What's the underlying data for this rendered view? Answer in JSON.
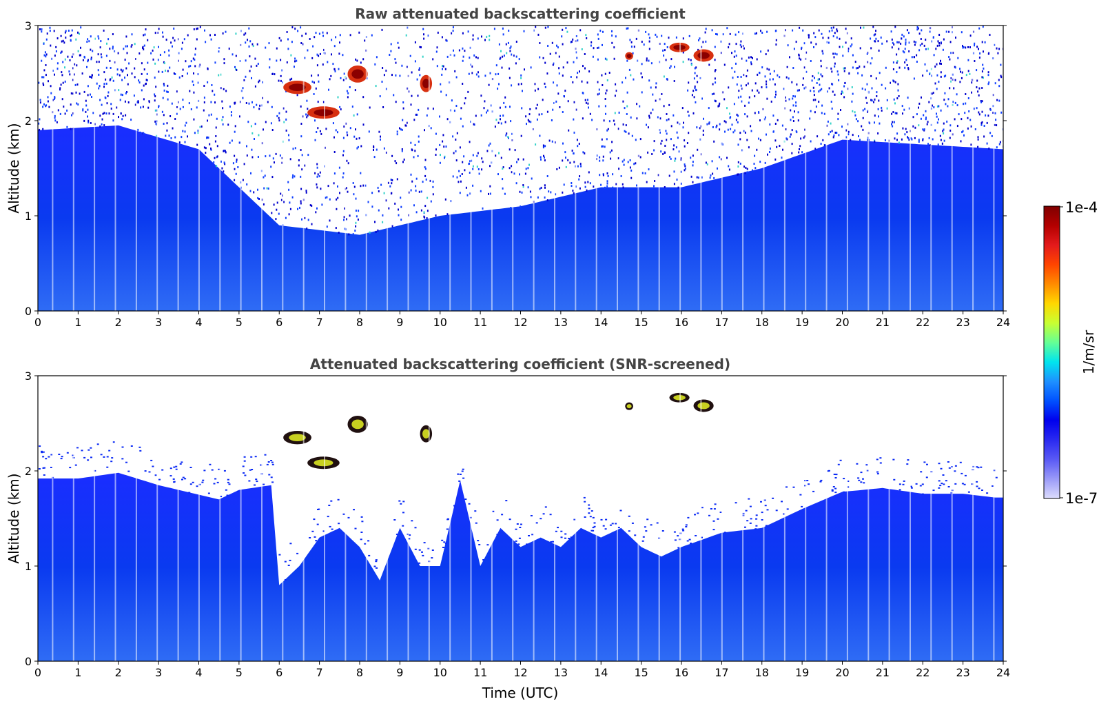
{
  "chart_data": [
    {
      "type": "heatmap",
      "title": "Raw attenuated backscattering coefficient",
      "xlabel": "",
      "ylabel": "Altitude (km)",
      "xlim": [
        0,
        24
      ],
      "ylim": [
        0,
        3
      ],
      "xticks": [
        "0",
        "1",
        "2",
        "3",
        "4",
        "5",
        "6",
        "7",
        "8",
        "9",
        "10",
        "11",
        "12",
        "13",
        "14",
        "15",
        "16",
        "17",
        "18",
        "19",
        "20",
        "21",
        "22",
        "23",
        "24"
      ],
      "yticks": [
        "0",
        "1",
        "2",
        "3"
      ],
      "boundary_layer_top_km": [
        [
          0,
          1.9
        ],
        [
          2,
          1.95
        ],
        [
          4,
          1.7
        ],
        [
          6,
          0.9
        ],
        [
          8,
          0.8
        ],
        [
          10,
          1.0
        ],
        [
          12,
          1.1
        ],
        [
          14,
          1.3
        ],
        [
          16,
          1.3
        ],
        [
          18,
          1.5
        ],
        [
          20,
          1.8
        ],
        [
          22,
          1.75
        ],
        [
          24,
          1.7
        ]
      ],
      "clouds": [
        {
          "t0": 6.1,
          "t1": 6.8,
          "z0": 2.28,
          "z1": 2.42
        },
        {
          "t0": 6.7,
          "t1": 7.5,
          "z0": 2.02,
          "z1": 2.15
        },
        {
          "t0": 7.7,
          "t1": 8.2,
          "z0": 2.4,
          "z1": 2.58
        },
        {
          "t0": 9.5,
          "t1": 9.8,
          "z0": 2.3,
          "z1": 2.48
        },
        {
          "t0": 14.6,
          "t1": 14.8,
          "z0": 2.64,
          "z1": 2.72
        },
        {
          "t0": 15.7,
          "t1": 16.2,
          "z0": 2.72,
          "z1": 2.82
        },
        {
          "t0": 16.3,
          "t1": 16.8,
          "z0": 2.62,
          "z1": 2.75
        }
      ]
    },
    {
      "type": "heatmap",
      "title": "Attenuated backscattering coefficient (SNR-screened)",
      "xlabel": "Time (UTC)",
      "ylabel": "Altitude (km)",
      "xlim": [
        0,
        24
      ],
      "ylim": [
        0,
        3
      ],
      "xticks": [
        "0",
        "1",
        "2",
        "3",
        "4",
        "5",
        "6",
        "7",
        "8",
        "9",
        "10",
        "11",
        "12",
        "13",
        "14",
        "15",
        "16",
        "17",
        "18",
        "19",
        "20",
        "21",
        "22",
        "23",
        "24"
      ],
      "yticks": [
        "0",
        "1",
        "2",
        "3"
      ],
      "valid_top_km": [
        [
          0,
          1.92
        ],
        [
          1,
          1.92
        ],
        [
          2,
          1.98
        ],
        [
          3,
          1.85
        ],
        [
          4,
          1.75
        ],
        [
          4.5,
          1.7
        ],
        [
          5,
          1.8
        ],
        [
          5.8,
          1.85
        ],
        [
          6,
          0.8
        ],
        [
          6.5,
          1.0
        ],
        [
          7,
          1.3
        ],
        [
          7.5,
          1.4
        ],
        [
          8,
          1.2
        ],
        [
          8.5,
          0.85
        ],
        [
          9,
          1.4
        ],
        [
          9.5,
          1.0
        ],
        [
          10,
          1.0
        ],
        [
          10.5,
          1.9
        ],
        [
          11,
          1.0
        ],
        [
          11.5,
          1.4
        ],
        [
          12,
          1.2
        ],
        [
          12.5,
          1.3
        ],
        [
          13,
          1.2
        ],
        [
          13.5,
          1.4
        ],
        [
          14,
          1.3
        ],
        [
          14.5,
          1.4
        ],
        [
          15,
          1.2
        ],
        [
          15.5,
          1.1
        ],
        [
          16,
          1.2
        ],
        [
          17,
          1.35
        ],
        [
          18,
          1.4
        ],
        [
          19,
          1.6
        ],
        [
          20,
          1.78
        ],
        [
          21,
          1.82
        ],
        [
          22,
          1.76
        ],
        [
          23,
          1.76
        ],
        [
          23.8,
          1.72
        ]
      ]
    }
  ],
  "colorbar": {
    "label": "1/m/sr",
    "max_label": "1e-4",
    "min_label": "1e-7",
    "colors": [
      "#7f0000",
      "#b40000",
      "#e31a1c",
      "#ff4500",
      "#ff8c00",
      "#ffd700",
      "#c8ff32",
      "#64ff96",
      "#00e5ee",
      "#1e90ff",
      "#0050ff",
      "#0000ee",
      "#2a2af0",
      "#5a5af5",
      "#9a9af8",
      "#dcdcfc"
    ]
  }
}
